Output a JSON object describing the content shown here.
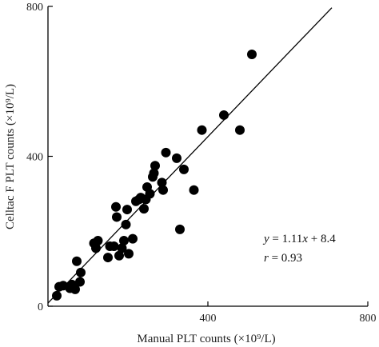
{
  "chart_data": {
    "type": "scatter",
    "title": "",
    "xlabel": "Manual PLT counts (×10⁹/L)",
    "ylabel": "Celltac F PLT counts (×10⁹/L)",
    "xlim": [
      0,
      800
    ],
    "ylim": [
      0,
      800
    ],
    "x_ticks": [
      "400",
      "800"
    ],
    "y_ticks": [
      "0",
      "400",
      "800"
    ],
    "x_tick_values": [
      400,
      800
    ],
    "y_tick_values": [
      0,
      400,
      800
    ],
    "grid": false,
    "marker_color": "#000000",
    "points": [
      {
        "x": 22,
        "y": 28
      },
      {
        "x": 28,
        "y": 52
      },
      {
        "x": 38,
        "y": 55
      },
      {
        "x": 55,
        "y": 48
      },
      {
        "x": 60,
        "y": 58
      },
      {
        "x": 68,
        "y": 45
      },
      {
        "x": 72,
        "y": 120
      },
      {
        "x": 80,
        "y": 65
      },
      {
        "x": 82,
        "y": 90
      },
      {
        "x": 115,
        "y": 168
      },
      {
        "x": 120,
        "y": 155
      },
      {
        "x": 125,
        "y": 175
      },
      {
        "x": 150,
        "y": 130
      },
      {
        "x": 155,
        "y": 160
      },
      {
        "x": 165,
        "y": 160
      },
      {
        "x": 170,
        "y": 265
      },
      {
        "x": 172,
        "y": 238
      },
      {
        "x": 178,
        "y": 135
      },
      {
        "x": 185,
        "y": 155
      },
      {
        "x": 190,
        "y": 175
      },
      {
        "x": 195,
        "y": 218
      },
      {
        "x": 198,
        "y": 258
      },
      {
        "x": 202,
        "y": 140
      },
      {
        "x": 212,
        "y": 180
      },
      {
        "x": 220,
        "y": 280
      },
      {
        "x": 228,
        "y": 285
      },
      {
        "x": 232,
        "y": 290
      },
      {
        "x": 240,
        "y": 260
      },
      {
        "x": 245,
        "y": 285
      },
      {
        "x": 248,
        "y": 318
      },
      {
        "x": 255,
        "y": 300
      },
      {
        "x": 262,
        "y": 345
      },
      {
        "x": 265,
        "y": 355
      },
      {
        "x": 268,
        "y": 375
      },
      {
        "x": 285,
        "y": 330
      },
      {
        "x": 288,
        "y": 310
      },
      {
        "x": 295,
        "y": 410
      },
      {
        "x": 322,
        "y": 395
      },
      {
        "x": 330,
        "y": 205
      },
      {
        "x": 340,
        "y": 365
      },
      {
        "x": 365,
        "y": 310
      },
      {
        "x": 385,
        "y": 470
      },
      {
        "x": 440,
        "y": 510
      },
      {
        "x": 480,
        "y": 470
      },
      {
        "x": 510,
        "y": 672
      }
    ],
    "regression_line": {
      "slope": 1.11,
      "intercept": 8.4,
      "x_range": [
        0,
        710
      ]
    },
    "annotations": {
      "y_var": "y",
      "equals": " = 1.11",
      "x_var": "x",
      "rest": " + 8.4",
      "r_var": "r",
      "r_rest": " = 0.93"
    }
  }
}
